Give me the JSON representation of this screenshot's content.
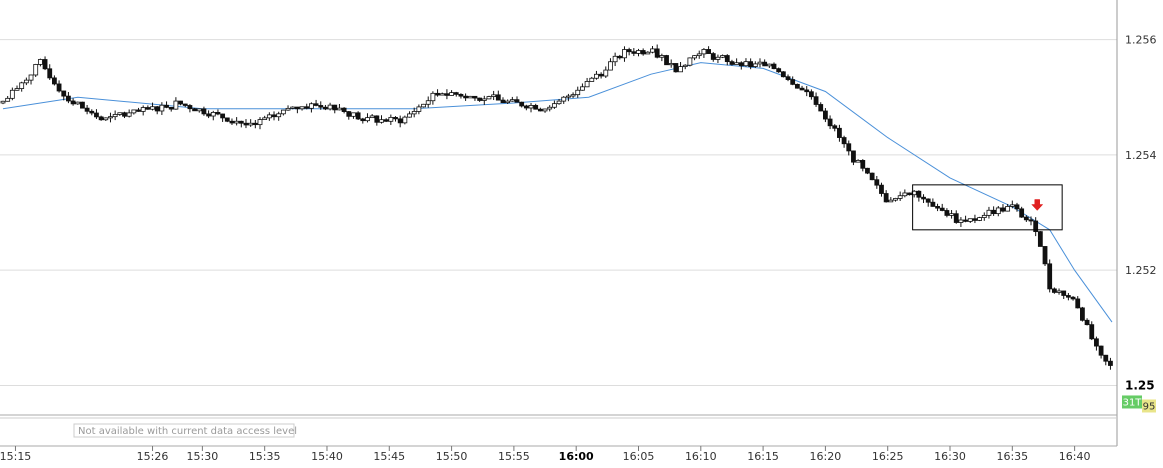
{
  "chart_data": {
    "type": "candlestick",
    "title": "",
    "xlabel": "",
    "ylabel": "",
    "ylim": [
      1.2498,
      1.2566
    ],
    "x_range": [
      "15:14",
      "16:43"
    ],
    "grid": true,
    "legend": "none",
    "colors": {
      "up_candle_fill": "#ffffff",
      "down_candle_fill": "#111111",
      "candle_outline": "#111111",
      "moving_average": "#4a90d9",
      "signal_arrow": "#e02020",
      "grid": "#dddddd",
      "last_price_badge": "#66cc66",
      "bid_badge": "#e9e58a"
    },
    "x_ticks": [
      {
        "label": "15:15",
        "t": "15:15",
        "bold": false
      },
      {
        "label": "15:26",
        "t": "15:26",
        "bold": false
      },
      {
        "label": "15:30",
        "t": "15:30",
        "bold": false
      },
      {
        "label": "15:35",
        "t": "15:35",
        "bold": false
      },
      {
        "label": "15:40",
        "t": "15:40",
        "bold": false
      },
      {
        "label": "15:45",
        "t": "15:45",
        "bold": false
      },
      {
        "label": "15:50",
        "t": "15:50",
        "bold": false
      },
      {
        "label": "15:55",
        "t": "15:55",
        "bold": false
      },
      {
        "label": "16:00",
        "t": "16:00",
        "bold": true
      },
      {
        "label": "16:05",
        "t": "16:05",
        "bold": false
      },
      {
        "label": "16:10",
        "t": "16:10",
        "bold": false
      },
      {
        "label": "16:15",
        "t": "16:15",
        "bold": false
      },
      {
        "label": "16:20",
        "t": "16:20",
        "bold": false
      },
      {
        "label": "16:25",
        "t": "16:25",
        "bold": false
      },
      {
        "label": "16:30",
        "t": "16:30",
        "bold": false
      },
      {
        "label": "16:35",
        "t": "16:35",
        "bold": false
      },
      {
        "label": "16:40",
        "t": "16:40",
        "bold": false
      }
    ],
    "y_ticks": [
      {
        "label": "1.256",
        "value": 1.256,
        "bold": false
      },
      {
        "label": "1.254",
        "value": 1.254,
        "bold": false
      },
      {
        "label": "1.252",
        "value": 1.252,
        "bold": false
      },
      {
        "label": "1.25",
        "value": 1.25,
        "bold": true
      }
    ],
    "series": [
      {
        "kind": "candles",
        "waypoints": [
          {
            "t": "15:14",
            "v": 1.2549
          },
          {
            "t": "15:17",
            "v": 1.2556
          },
          {
            "t": "15:19",
            "v": 1.255
          },
          {
            "t": "15:22",
            "v": 1.2546
          },
          {
            "t": "15:26",
            "v": 1.2548
          },
          {
            "t": "15:28",
            "v": 1.2549
          },
          {
            "t": "15:31",
            "v": 1.2547
          },
          {
            "t": "15:34",
            "v": 1.2545
          },
          {
            "t": "15:37",
            "v": 1.2548
          },
          {
            "t": "15:40",
            "v": 1.2549
          },
          {
            "t": "15:43",
            "v": 1.2546
          },
          {
            "t": "15:46",
            "v": 1.2546
          },
          {
            "t": "15:49",
            "v": 1.2551
          },
          {
            "t": "15:52",
            "v": 1.255
          },
          {
            "t": "15:55",
            "v": 1.2549
          },
          {
            "t": "15:58",
            "v": 1.2548
          },
          {
            "t": "16:01",
            "v": 1.2553
          },
          {
            "t": "16:04",
            "v": 1.2558
          },
          {
            "t": "16:06",
            "v": 1.2558
          },
          {
            "t": "16:08",
            "v": 1.2555
          },
          {
            "t": "16:10",
            "v": 1.2558
          },
          {
            "t": "16:12",
            "v": 1.2556
          },
          {
            "t": "16:16",
            "v": 1.2555
          },
          {
            "t": "16:19",
            "v": 1.255
          },
          {
            "t": "16:22",
            "v": 1.254
          },
          {
            "t": "16:25",
            "v": 1.2532
          },
          {
            "t": "16:27",
            "v": 1.2534
          },
          {
            "t": "16:29",
            "v": 1.2531
          },
          {
            "t": "16:31",
            "v": 1.2528
          },
          {
            "t": "16:33",
            "v": 1.253
          },
          {
            "t": "16:35",
            "v": 1.2531
          },
          {
            "t": "16:37",
            "v": 1.2527
          },
          {
            "t": "16:38",
            "v": 1.2517
          },
          {
            "t": "16:40",
            "v": 1.2515
          },
          {
            "t": "16:42",
            "v": 1.2505
          },
          {
            "t": "16:43",
            "v": 1.2503
          }
        ]
      },
      {
        "kind": "moving_average",
        "points": [
          {
            "t": "15:14",
            "v": 1.2548
          },
          {
            "t": "15:20",
            "v": 1.255
          },
          {
            "t": "15:30",
            "v": 1.2548
          },
          {
            "t": "15:40",
            "v": 1.2548
          },
          {
            "t": "15:47",
            "v": 1.2548
          },
          {
            "t": "15:55",
            "v": 1.2549
          },
          {
            "t": "16:01",
            "v": 1.255
          },
          {
            "t": "16:06",
            "v": 1.2554
          },
          {
            "t": "16:10",
            "v": 1.2556
          },
          {
            "t": "16:15",
            "v": 1.2555
          },
          {
            "t": "16:20",
            "v": 1.2551
          },
          {
            "t": "16:25",
            "v": 1.2543
          },
          {
            "t": "16:30",
            "v": 1.2536
          },
          {
            "t": "16:35",
            "v": 1.2531
          },
          {
            "t": "16:38",
            "v": 1.2527
          },
          {
            "t": "16:40",
            "v": 1.252
          },
          {
            "t": "16:43",
            "v": 1.2511
          }
        ]
      }
    ],
    "annotations": {
      "consolidation_box": {
        "t0": "16:27",
        "t1": "16:39",
        "v_low": 1.2527,
        "v_high": 1.25348
      },
      "signal_arrow": {
        "t": "16:37",
        "v": 1.25307,
        "direction": "down"
      }
    },
    "badges": {
      "last": "31T",
      "bid": "95"
    },
    "note": "Not available with current data access level"
  }
}
